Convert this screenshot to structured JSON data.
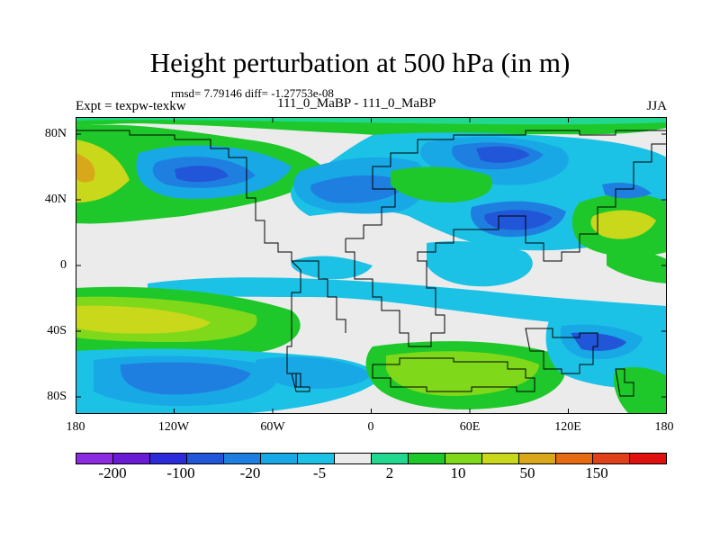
{
  "title": "Height perturbation at 500 hPa (in m)",
  "stats": "rmsd= 7.79146 diff= -1.27753e-08",
  "expt": "Expt = texpw-texkw",
  "run": "111_0_MaBP - 111_0_MaBP",
  "season": "JJA",
  "lat_labels": [
    "80N",
    "40N",
    "0",
    "40S",
    "80S"
  ],
  "lon_labels": [
    "180",
    "120W",
    "60W",
    "0",
    "60E",
    "120E",
    "180"
  ],
  "colorbar": {
    "colors": [
      "#8b2be2",
      "#6a1bd6",
      "#2b2bd9",
      "#2256d8",
      "#1f7fe0",
      "#18a8e6",
      "#1cc2e6",
      "#ebebeb",
      "#22d890",
      "#1ec82a",
      "#7fd91a",
      "#c9d81a",
      "#d9a81a",
      "#e56a12",
      "#e0401a",
      "#e01010"
    ],
    "labels": [
      "-200",
      "-100",
      "-20",
      "-5",
      "2",
      "10",
      "50",
      "150"
    ]
  }
}
